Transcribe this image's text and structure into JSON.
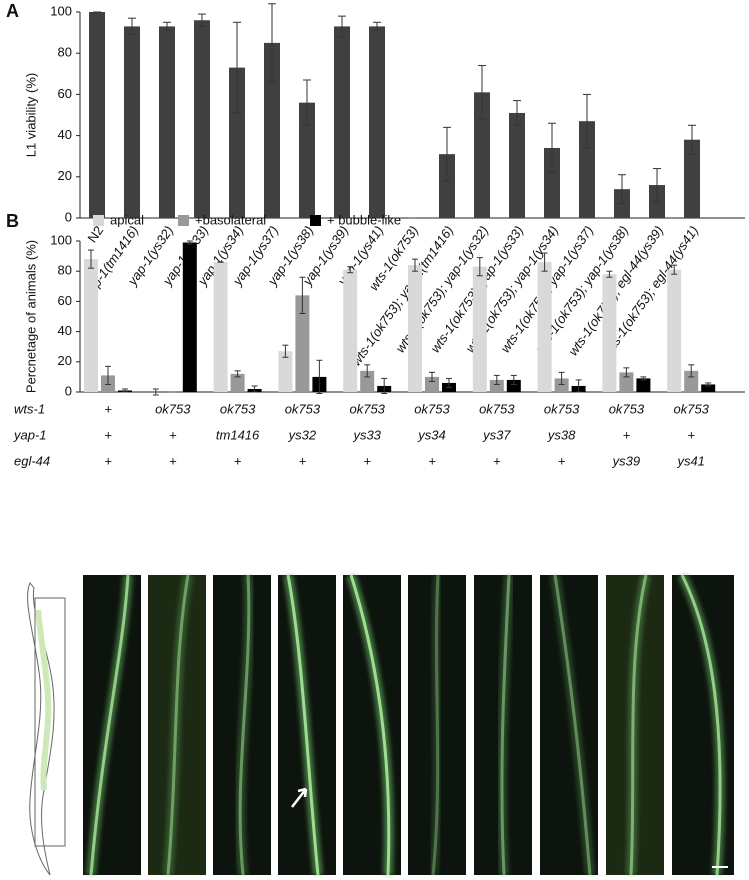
{
  "chart_data": [
    {
      "type": "bar",
      "panel": "A",
      "y_label": "L1 viability (%)",
      "categories": [
        "N2",
        "yap-1(tm1416)",
        "yap-1(ys32)",
        "yap-1(ys33)",
        "yap-1(ys34)",
        "yap-1(ys37)",
        "yap-1(ys38)",
        "yap-1(ys39)",
        "yap-1(ys41)",
        "wts-1(ok753)",
        "wts-1(ok753); yap-1(tm1416)",
        "wts-1(ok753); yap-1(ys32)",
        "wts-1(ok753); yap-1(ys33)",
        "wts-1(ok753); yap-1(ys34)",
        "wts-1(ok753); yap-1(ys37)",
        "wts-1(ok753); yap-1(ys38)",
        "wts-1(ok753); egl-44(ys39)",
        "wts-1(ok753); egl-44(ys41)"
      ],
      "values": [
        100,
        93,
        93,
        96,
        73,
        85,
        56,
        93,
        93,
        0,
        31,
        61,
        51,
        34,
        47,
        14,
        16,
        38
      ],
      "errors": [
        0,
        4,
        2,
        3,
        22,
        19,
        11,
        5,
        2,
        0,
        13,
        13,
        6,
        12,
        13,
        7,
        8,
        7
      ],
      "color": "#404040",
      "ylim": [
        0,
        100
      ],
      "yticks": [
        0,
        20,
        40,
        60,
        80,
        100
      ]
    },
    {
      "type": "grouped_bar",
      "panel": "B",
      "y_label": "Percnetage of animals (%)",
      "series": [
        {
          "name": "apical",
          "color": "#d9d9d9",
          "values": [
            88,
            0,
            86,
            27,
            81,
            84,
            83,
            86,
            78,
            81
          ],
          "errors": [
            6,
            2,
            0,
            4,
            2,
            4,
            6,
            6,
            2,
            3
          ]
        },
        {
          "name": "+basolateral",
          "color": "#999999",
          "values": [
            11,
            0,
            12,
            64,
            14,
            10,
            8,
            9,
            13,
            14
          ],
          "errors": [
            6,
            0,
            2,
            12,
            4,
            3,
            3,
            4,
            3,
            4
          ]
        },
        {
          "name": "+ bubble-like",
          "color": "#000000",
          "values": [
            1,
            99,
            2,
            10,
            4,
            6,
            8,
            4,
            9,
            5
          ],
          "errors": [
            1,
            1,
            2,
            11,
            5,
            3,
            3,
            4,
            1,
            1
          ]
        }
      ],
      "ylim": [
        0,
        100
      ],
      "yticks": [
        0,
        20,
        40,
        60,
        80,
        100
      ],
      "genotypes": [
        {
          "gene": "wts-1",
          "alleles": [
            "+",
            "ok753",
            "ok753",
            "ok753",
            "ok753",
            "ok753",
            "ok753",
            "ok753",
            "ok753",
            "ok753"
          ]
        },
        {
          "gene": "yap-1",
          "alleles": [
            "+",
            "+",
            "tm1416",
            "ys32",
            "ys33",
            "ys34",
            "ys37",
            "ys38",
            "+",
            "+"
          ]
        },
        {
          "gene": "egl-44",
          "alleles": [
            "+",
            "+",
            "+",
            "+",
            "+",
            "+",
            "+",
            "+",
            "ys39",
            "ys41"
          ]
        }
      ]
    }
  ]
}
